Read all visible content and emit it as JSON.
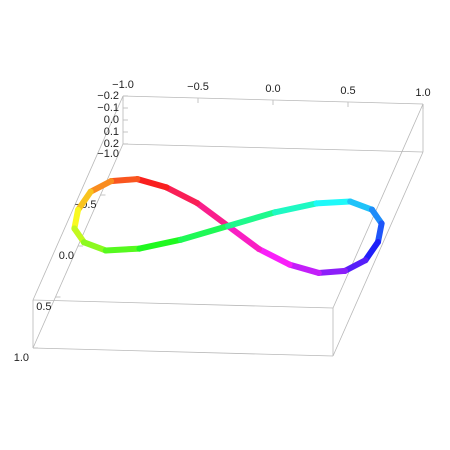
{
  "chart_data": {
    "type": "line3d",
    "x": [
      1,
      0.97,
      0.87,
      0.71,
      0.5,
      0.26,
      0,
      -0.26,
      -0.5,
      -0.71,
      -0.87,
      -0.97,
      -1,
      -0.97,
      -0.87,
      -0.71,
      -0.5,
      -0.26,
      0,
      0.26,
      0.5,
      0.71,
      0.87,
      0.97
    ],
    "y": [
      0,
      0.18,
      0.3,
      0.35,
      0.3,
      0.18,
      0,
      -0.18,
      -0.3,
      -0.35,
      -0.3,
      -0.18,
      0,
      0.18,
      0.3,
      0.35,
      0.3,
      0.18,
      0,
      -0.18,
      -0.3,
      -0.35,
      -0.3,
      -0.18
    ],
    "z": [
      0.1,
      0.1,
      0.09,
      0.07,
      0.05,
      0.03,
      0,
      -0.03,
      -0.05,
      -0.07,
      -0.09,
      -0.1,
      -0.1,
      -0.1,
      -0.09,
      -0.07,
      -0.05,
      -0.03,
      0,
      0.03,
      0.05,
      0.07,
      0.09,
      0.1
    ],
    "xlim": [
      -1,
      1
    ],
    "ylim": [
      -1,
      1
    ],
    "zlim": [
      -0.2,
      0.2
    ],
    "xticks": [
      {
        "value": -1,
        "label": "−1.0"
      },
      {
        "value": -0.5,
        "label": "−0.5"
      },
      {
        "value": 0,
        "label": "0.0"
      },
      {
        "value": 0.5,
        "label": "0.5"
      },
      {
        "value": 1,
        "label": "1.0"
      }
    ],
    "yticks": [
      {
        "value": -1,
        "label": "−1.0"
      },
      {
        "value": -0.5,
        "label": "−0.5"
      },
      {
        "value": 0,
        "label": "0.0"
      },
      {
        "value": 0.5,
        "label": "0.5"
      },
      {
        "value": 1,
        "label": "1.0"
      }
    ],
    "zticks": [
      {
        "value": -0.2,
        "label": "−0.2"
      },
      {
        "value": -0.1,
        "label": "−0.1"
      },
      {
        "value": 0,
        "label": "0.0"
      },
      {
        "value": 0.1,
        "label": "0.1"
      },
      {
        "value": 0.2,
        "label": "0.2"
      }
    ]
  }
}
